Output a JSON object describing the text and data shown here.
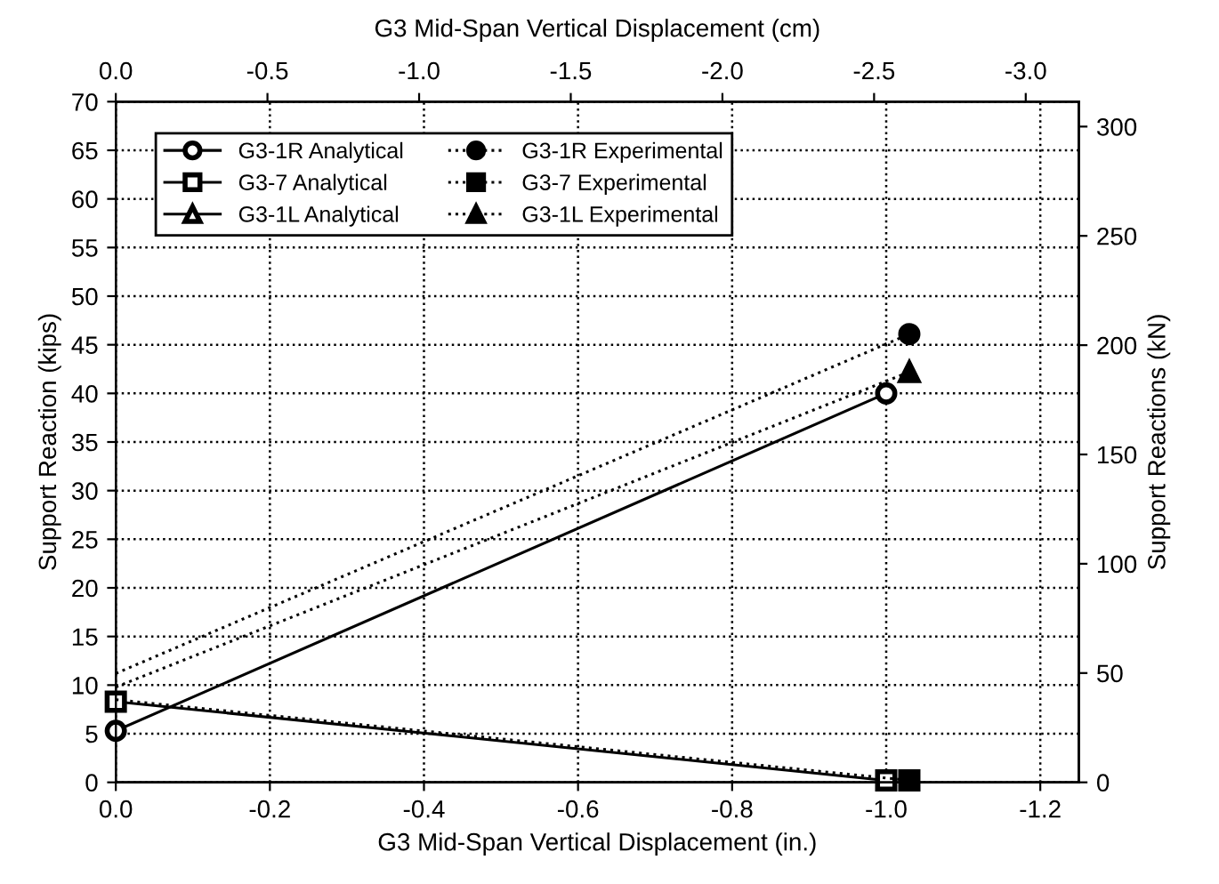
{
  "chart_data": {
    "type": "line",
    "xlabel": "G3 Mid-Span Vertical Displacement (in.)",
    "x2label": "G3 Mid-Span Vertical Displacement (cm)",
    "ylabel": "Support Reaction (kips)",
    "y2label": "Support Reactions (kN)",
    "xlim": [
      0,
      -1.25
    ],
    "xticks": [
      {
        "value": 0,
        "label": "0.0"
      },
      -0.2,
      -0.4,
      -0.6,
      -0.8,
      {
        "value": -1.0,
        "label": "-1.0"
      },
      -1.2
    ],
    "x2lim": [
      0,
      -3.175
    ],
    "x2ticks": [
      {
        "value": 0,
        "label": "0.0"
      },
      -0.5,
      {
        "value": -1.0,
        "label": "-1.0"
      },
      -1.5,
      {
        "value": -2.0,
        "label": "-2.0"
      },
      -2.5,
      {
        "value": -3.0,
        "label": "-3.0"
      }
    ],
    "ylim": [
      0,
      70
    ],
    "yticks": [
      0,
      5,
      10,
      15,
      20,
      25,
      30,
      35,
      40,
      45,
      50,
      55,
      60,
      65,
      70
    ],
    "y2lim": [
      0,
      311.4
    ],
    "y2ticks": [
      0,
      50,
      100,
      150,
      200,
      250,
      300
    ],
    "grid": true,
    "legend": "top left",
    "series": [
      {
        "name": "G3-1R Analytical",
        "color": "#000000",
        "x": [
          0,
          -1.0
        ],
        "values": [
          5.3,
          40.0
        ],
        "marker": "circle",
        "line_style": "solid"
      },
      {
        "name": "G3-7 Analytical",
        "color": "#000000",
        "x": [
          0,
          -1.0
        ],
        "values": [
          8.3,
          0.2
        ],
        "marker": "square",
        "line_style": "solid"
      },
      {
        "name": "G3-1L Analytical",
        "color": "#000000",
        "marker": "triangle",
        "line_style": "solid"
      },
      {
        "name": "G3-1R Experimental",
        "color": "#000000",
        "x": [
          0,
          -1.03
        ],
        "values": [
          11.2,
          46.1
        ],
        "marker": "circle",
        "line_style": "dotted"
      },
      {
        "name": "G3-7 Experimental",
        "color": "#000000",
        "x": [
          0,
          -1.03
        ],
        "values": [
          8.5,
          0.2
        ],
        "marker": "square",
        "line_style": "dotted"
      },
      {
        "name": "G3-1L Experimental",
        "color": "#000000",
        "x": [
          0,
          -1.03
        ],
        "values": [
          9.8,
          42.2
        ],
        "marker": "triangle",
        "line_style": "dotted"
      }
    ]
  }
}
